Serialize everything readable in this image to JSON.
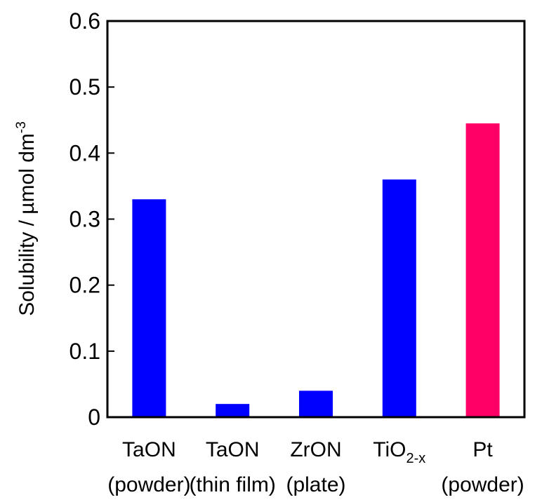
{
  "chart_data": {
    "type": "bar",
    "ylabel": "Solubility / µmol dm",
    "ylabel_superscript": "-3",
    "ylim": [
      0,
      0.6
    ],
    "yticks": [
      {
        "value": 0,
        "label": "0"
      },
      {
        "value": 0.1,
        "label": "0.1"
      },
      {
        "value": 0.2,
        "label": "0.2"
      },
      {
        "value": 0.3,
        "label": "0.3"
      },
      {
        "value": 0.4,
        "label": "0.4"
      },
      {
        "value": 0.5,
        "label": "0.5"
      },
      {
        "value": 0.6,
        "label": "0.6"
      }
    ],
    "categories": [
      {
        "name": "TaON",
        "sub": "",
        "suffix": "",
        "detail": "(powder)"
      },
      {
        "name": "TaON",
        "sub": "",
        "suffix": "",
        "detail": "(thin film)"
      },
      {
        "name": "ZrON",
        "sub": "",
        "suffix": "",
        "detail": "(plate)"
      },
      {
        "name": "TiO",
        "sub": "2-x",
        "suffix": "",
        "detail": ""
      },
      {
        "name": "Pt",
        "sub": "",
        "suffix": "",
        "detail": "(powder)"
      }
    ],
    "values": [
      0.33,
      0.02,
      0.04,
      0.36,
      0.445
    ],
    "bar_colors": [
      "#0000ff",
      "#0000ff",
      "#0000ff",
      "#0000ff",
      "#ff0066"
    ],
    "grid": false,
    "legend": "none"
  }
}
